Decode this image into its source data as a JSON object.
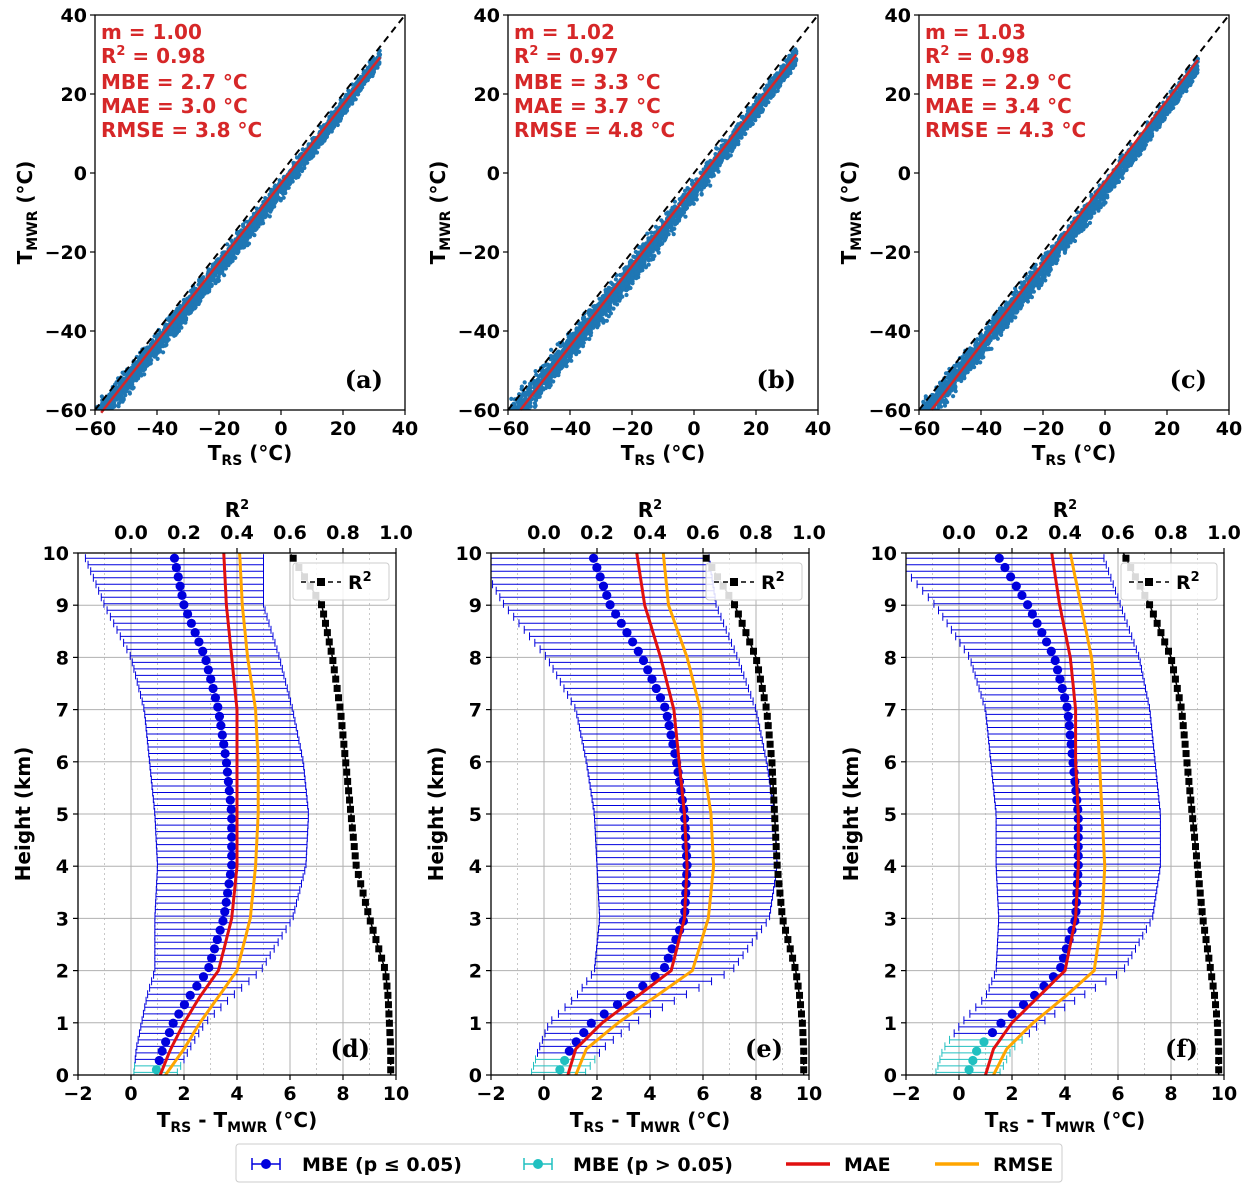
{
  "colors": {
    "scatter": "#1f77b4",
    "fit": "#d62728",
    "mbe_sig": "#0000dd",
    "mbe_ns": "#20c0c0",
    "mae": "#e01010",
    "rmse": "#ffa500",
    "r2": "#000000"
  },
  "chart_data": [
    {
      "id": "a",
      "type": "scatter",
      "panel_label": "(a)",
      "xlabel_main": "T",
      "xlabel_sub": "RS",
      "xlabel_unit": " (°C)",
      "ylabel_main": "T",
      "ylabel_sub": "MWR",
      "ylabel_unit": " (°C)",
      "xlim": [
        -60,
        40
      ],
      "ylim": [
        -60,
        40
      ],
      "xticks": [
        "−60",
        "−40",
        "−20",
        "0",
        "20",
        "40"
      ],
      "yticks": [
        "−60",
        "−40",
        "−20",
        "0",
        "20",
        "40"
      ],
      "stats": {
        "m": "m = 1.00",
        "r2_prefix": "R",
        "r2_sup": "2",
        "r2_value": " = 0.98",
        "mbe": "MBE = 2.7 °C",
        "mae": "MAE = 3.0 °C",
        "rmse": "RMSE = 3.8 °C"
      },
      "fit": {
        "x": [
          -58,
          32
        ],
        "y": [
          -60.7,
          29.3
        ]
      },
      "cloud": {
        "x0": -60,
        "x1": 32,
        "lower": [
          -52,
          28
        ],
        "upper": [
          -46,
          32
        ],
        "bias": 2.7,
        "spread": 3.0
      }
    },
    {
      "id": "b",
      "type": "scatter",
      "panel_label": "(b)",
      "xlabel_main": "T",
      "xlabel_sub": "RS",
      "xlabel_unit": " (°C)",
      "ylabel_main": "T",
      "ylabel_sub": "MWR",
      "ylabel_unit": " (°C)",
      "xlim": [
        -60,
        40
      ],
      "ylim": [
        -60,
        40
      ],
      "xticks": [
        "−60",
        "−40",
        "−20",
        "0",
        "20",
        "40"
      ],
      "yticks": [
        "−60",
        "−40",
        "−20",
        "0",
        "20",
        "40"
      ],
      "stats": {
        "m": "m = 1.02",
        "r2_prefix": "R",
        "r2_sup": "2",
        "r2_value": " = 0.97",
        "mbe": "MBE = 3.3 °C",
        "mae": "MAE = 3.7 °C",
        "rmse": "RMSE = 4.8 °C"
      },
      "fit": {
        "x": [
          -56,
          33
        ],
        "y": [
          -60,
          30
        ]
      },
      "cloud": {
        "x0": -60,
        "x1": 33,
        "lower": [
          -55,
          28
        ],
        "upper": [
          -45,
          31
        ],
        "bias": 3.3,
        "spread": 3.5
      }
    },
    {
      "id": "c",
      "type": "scatter",
      "panel_label": "(c)",
      "xlabel_main": "T",
      "xlabel_sub": "RS",
      "xlabel_unit": " (°C)",
      "ylabel_main": "T",
      "ylabel_sub": "MWR",
      "ylabel_unit": " (°C)",
      "xlim": [
        -60,
        40
      ],
      "ylim": [
        -60,
        40
      ],
      "xticks": [
        "−60",
        "−40",
        "−20",
        "0",
        "20",
        "40"
      ],
      "yticks": [
        "−60",
        "−40",
        "−20",
        "0",
        "20",
        "40"
      ],
      "stats": {
        "m": "m = 1.03",
        "r2_prefix": "R",
        "r2_sup": "2",
        "r2_value": " = 0.98",
        "mbe": "MBE = 2.9 °C",
        "mae": "MAE = 3.4 °C",
        "rmse": "RMSE = 4.3 °C"
      },
      "fit": {
        "x": [
          -56,
          30
        ],
        "y": [
          -60,
          28.6
        ]
      },
      "cloud": {
        "x0": -60,
        "x1": 30,
        "lower": [
          -53,
          26
        ],
        "upper": [
          -48,
          31
        ],
        "bias": 2.9,
        "spread": 3.2
      }
    },
    {
      "id": "d",
      "type": "line",
      "panel_label": "(d)",
      "xlabel_main": "T",
      "xlabel_sub": "RS",
      "xlabel_mid": " - T",
      "xlabel_sub2": "MWR",
      "xlabel_unit": " (°C)",
      "ylabel": "Height (km)",
      "top_label": "R",
      "top_label_sup": "2",
      "xlim": [
        -2,
        10
      ],
      "ylim": [
        0,
        10
      ],
      "top_xlim": [
        -0.2,
        1.0
      ],
      "xticks": [
        "−2",
        "0",
        "2",
        "4",
        "6",
        "8",
        "10"
      ],
      "yticks": [
        "0",
        "1",
        "2",
        "3",
        "4",
        "5",
        "6",
        "7",
        "8",
        "9",
        "10"
      ],
      "top_ticks": [
        "0.0",
        "0.2",
        "0.4",
        "0.6",
        "0.8",
        "1.0"
      ],
      "r2_legend": "R",
      "r2_legend_sup": "2",
      "heights": [
        0,
        0.5,
        1,
        1.5,
        2,
        3,
        4,
        5,
        6,
        7,
        8,
        9,
        10
      ],
      "mbe": [
        0.9,
        1.2,
        1.6,
        2.2,
        2.9,
        3.5,
        3.8,
        3.8,
        3.6,
        3.3,
        2.8,
        2.0,
        1.6
      ],
      "mae": [
        1.1,
        1.5,
        2.0,
        2.6,
        3.3,
        3.8,
        4.0,
        4.0,
        4.0,
        4.0,
        3.8,
        3.6,
        3.5
      ],
      "rmse": [
        1.3,
        2.0,
        2.6,
        3.3,
        4.0,
        4.5,
        4.7,
        4.8,
        4.8,
        4.7,
        4.4,
        4.2,
        4.1
      ],
      "std": [
        0.8,
        1.0,
        1.2,
        1.6,
        2.0,
        2.6,
        2.8,
        2.9,
        2.9,
        2.8,
        2.8,
        3.0,
        3.4
      ],
      "ns_below": 0.2,
      "r2": [
        0.98,
        0.98,
        0.975,
        0.97,
        0.96,
        0.9,
        0.85,
        0.83,
        0.81,
        0.79,
        0.76,
        0.72,
        0.6
      ]
    },
    {
      "id": "e",
      "type": "line",
      "panel_label": "(e)",
      "xlabel_main": "T",
      "xlabel_sub": "RS",
      "xlabel_mid": " - T",
      "xlabel_sub2": "MWR",
      "xlabel_unit": " (°C)",
      "ylabel": "Height (km)",
      "top_label": "R",
      "top_label_sup": "2",
      "xlim": [
        -2,
        10
      ],
      "ylim": [
        0,
        10
      ],
      "top_xlim": [
        -0.2,
        1.0
      ],
      "xticks": [
        "−2",
        "0",
        "2",
        "4",
        "6",
        "8",
        "10"
      ],
      "yticks": [
        "0",
        "1",
        "2",
        "3",
        "4",
        "5",
        "6",
        "7",
        "8",
        "9",
        "10"
      ],
      "top_ticks": [
        "0.0",
        "0.2",
        "0.4",
        "0.6",
        "0.8",
        "1.0"
      ],
      "r2_legend": "R",
      "r2_legend_sup": "2",
      "heights": [
        0,
        0.5,
        1,
        1.5,
        2,
        3,
        4,
        5,
        6,
        7,
        8,
        9,
        10
      ],
      "mbe": [
        0.5,
        1.0,
        1.8,
        3.2,
        4.5,
        5.3,
        5.4,
        5.3,
        5.0,
        4.6,
        3.7,
        2.5,
        1.8
      ],
      "mae": [
        0.9,
        1.2,
        2.2,
        3.5,
        4.8,
        5.3,
        5.4,
        5.3,
        5.1,
        4.9,
        4.4,
        3.8,
        3.5
      ],
      "rmse": [
        1.2,
        1.6,
        2.8,
        4.2,
        5.6,
        6.2,
        6.4,
        6.3,
        6.0,
        5.9,
        5.4,
        4.7,
        4.5
      ],
      "std": [
        1.0,
        1.2,
        1.6,
        2.0,
        2.6,
        3.2,
        3.4,
        3.4,
        3.4,
        3.4,
        3.6,
        4.0,
        4.4
      ],
      "ns_below": 0.4,
      "r2": [
        0.98,
        0.98,
        0.975,
        0.965,
        0.95,
        0.9,
        0.88,
        0.87,
        0.86,
        0.84,
        0.8,
        0.72,
        0.6
      ]
    },
    {
      "id": "f",
      "type": "line",
      "panel_label": "(f)",
      "xlabel_main": "T",
      "xlabel_sub": "RS",
      "xlabel_mid": " - T",
      "xlabel_sub2": "MWR",
      "xlabel_unit": " (°C)",
      "ylabel": "Height (km)",
      "top_label": "R",
      "top_label_sup": "2",
      "xlim": [
        -2,
        10
      ],
      "ylim": [
        0,
        10
      ],
      "top_xlim": [
        -0.2,
        1.0
      ],
      "xticks": [
        "−2",
        "0",
        "2",
        "4",
        "6",
        "8",
        "10"
      ],
      "yticks": [
        "0",
        "1",
        "2",
        "3",
        "4",
        "5",
        "6",
        "7",
        "8",
        "9",
        "10"
      ],
      "top_ticks": [
        "0.0",
        "0.2",
        "0.4",
        "0.6",
        "0.8",
        "1.0"
      ],
      "r2_legend": "R",
      "r2_legend_sup": "2",
      "heights": [
        0,
        0.5,
        1,
        1.5,
        2,
        3,
        4,
        5,
        6,
        7,
        8,
        9,
        10
      ],
      "mbe": [
        0.3,
        0.7,
        1.6,
        2.8,
        3.8,
        4.4,
        4.5,
        4.5,
        4.3,
        4.1,
        3.6,
        2.6,
        1.4
      ],
      "mae": [
        1.0,
        1.3,
        2.0,
        3.0,
        4.0,
        4.4,
        4.5,
        4.5,
        4.4,
        4.4,
        4.2,
        3.8,
        3.5
      ],
      "rmse": [
        1.3,
        1.8,
        2.8,
        4.0,
        5.1,
        5.4,
        5.5,
        5.4,
        5.3,
        5.2,
        5.0,
        4.6,
        4.2
      ],
      "std": [
        1.2,
        1.3,
        1.5,
        1.8,
        2.4,
        2.9,
        3.1,
        3.1,
        3.1,
        3.1,
        3.2,
        3.5,
        4.0
      ],
      "ns_below": 0.7,
      "r2": [
        0.98,
        0.98,
        0.975,
        0.965,
        0.95,
        0.92,
        0.9,
        0.88,
        0.86,
        0.84,
        0.8,
        0.72,
        0.62
      ]
    }
  ],
  "legend": {
    "mbe_sig_label": "MBE (p ≤  0.05)",
    "mbe_ns_label": "MBE (p > 0.05)",
    "mae_label": "MAE",
    "rmse_label": "RMSE"
  }
}
